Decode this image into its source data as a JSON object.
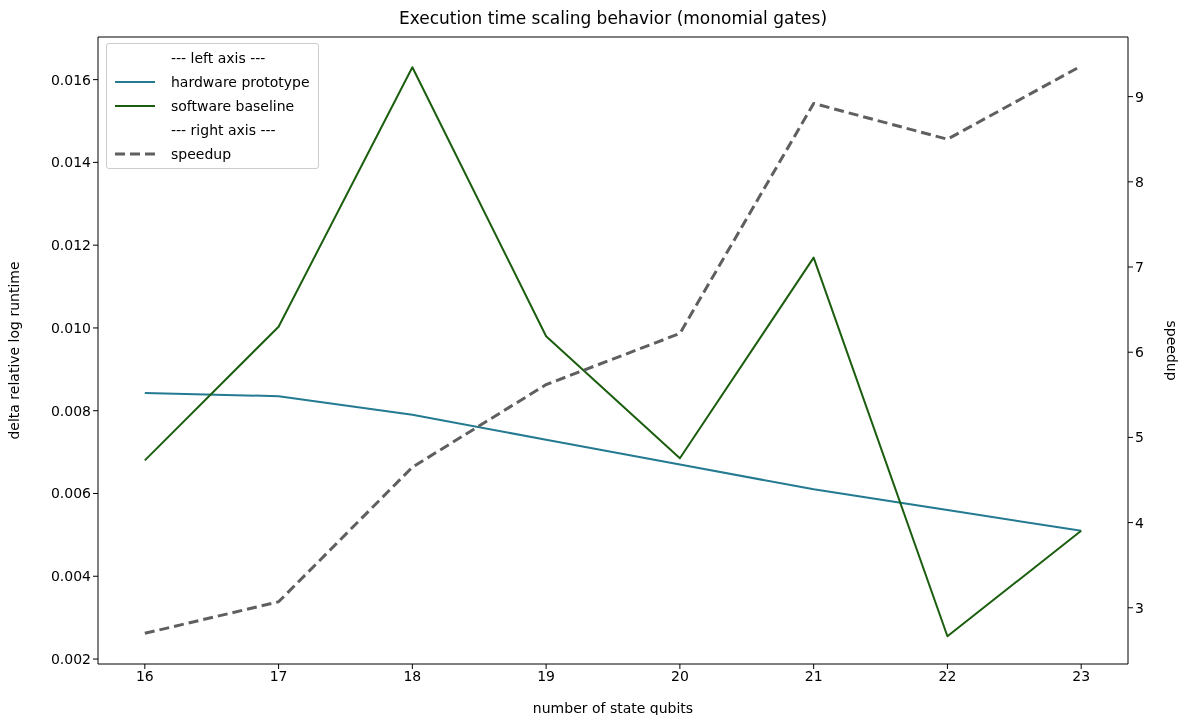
{
  "chart_data": {
    "type": "line",
    "title": "Execution time scaling behavior (monomial gates)",
    "xlabel": "number of state qubits",
    "ylabel": "delta relative log runtime",
    "y2label": "speedup",
    "x": [
      16,
      17,
      18,
      19,
      20,
      21,
      22,
      23
    ],
    "xlim": [
      15.65,
      23.35
    ],
    "xticks": [
      16,
      17,
      18,
      19,
      20,
      21,
      22,
      23
    ],
    "ylim": [
      0.00188,
      0.01703
    ],
    "yticks": [
      {
        "value": 0.002,
        "label": "0.002"
      },
      {
        "value": 0.004,
        "label": "0.004"
      },
      {
        "value": 0.006,
        "label": "0.006"
      },
      {
        "value": 0.008,
        "label": "0.008"
      },
      {
        "value": 0.01,
        "label": "0.010"
      },
      {
        "value": 0.012,
        "label": "0.012"
      },
      {
        "value": 0.014,
        "label": "0.014"
      },
      {
        "value": 0.016,
        "label": "0.016"
      }
    ],
    "y2lim": [
      2.34,
      9.7
    ],
    "y2ticks": [
      3,
      4,
      5,
      6,
      7,
      8,
      9
    ],
    "series": [
      {
        "name": "hardware prototype",
        "color": "#237a91",
        "values": [
          0.00843,
          0.00835,
          0.0079,
          0.0073,
          0.0067,
          0.0061,
          0.0056,
          0.0051
        ]
      },
      {
        "name": "software baseline",
        "color": "#1a5e0e",
        "values": [
          0.0068,
          0.01003,
          0.0163,
          0.0098,
          0.00685,
          0.0117,
          0.00255,
          0.0051
        ]
      },
      {
        "name": "speedup",
        "color": "#5f5f5f",
        "axis": "y2",
        "line_style": "dashed",
        "values": [
          2.7,
          3.07,
          4.65,
          5.62,
          6.22,
          8.92,
          8.5,
          9.36
        ]
      }
    ],
    "annotations": [
      "--- left axis ---",
      "--- right axis ---"
    ],
    "legend": "top left",
    "marker": "none"
  }
}
